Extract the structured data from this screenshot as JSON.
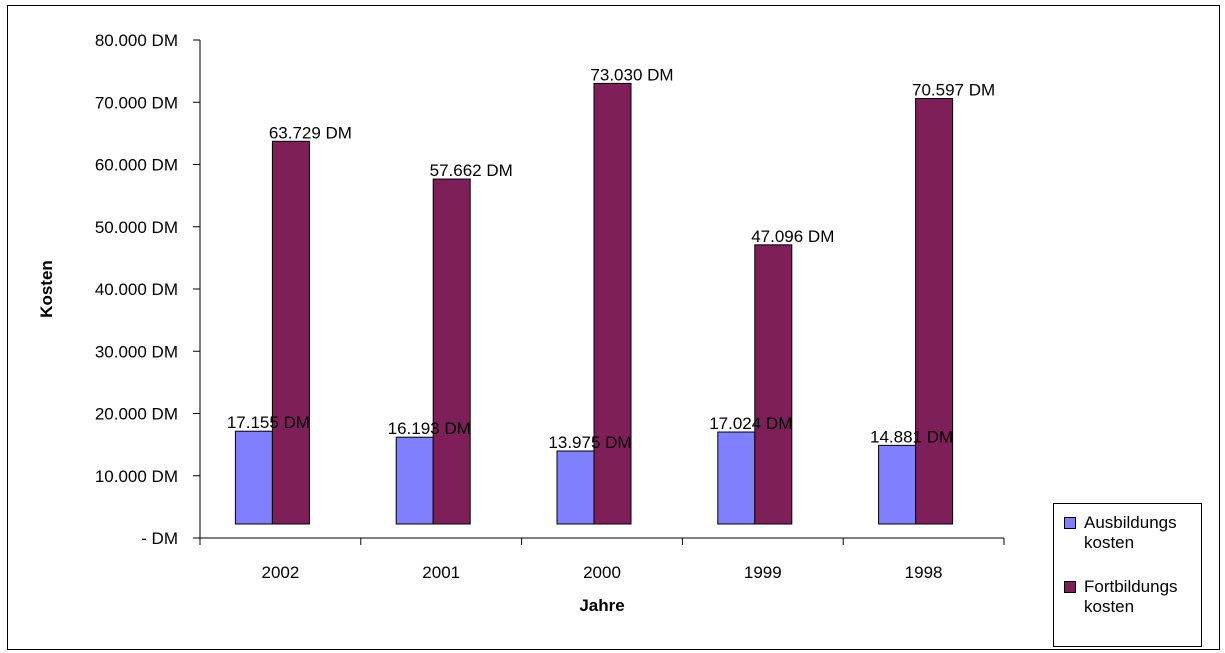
{
  "chart_data": {
    "type": "bar",
    "categories": [
      "2002",
      "2001",
      "2000",
      "1999",
      "1998"
    ],
    "series": [
      {
        "name": "Ausbildungs kosten",
        "color": "#8080ff",
        "values": [
          17155,
          16193,
          13975,
          17024,
          14881
        ],
        "labels": [
          "17.155 DM",
          "16.193 DM",
          "13.975 DM",
          "17.024 DM",
          "14.881 DM"
        ]
      },
      {
        "name": "Fortbildungs kosten",
        "color": "#7f1f5a",
        "values": [
          63729,
          57662,
          73030,
          47096,
          70597
        ],
        "labels": [
          "63.729 DM",
          "57.662 DM",
          "73.030 DM",
          "47.096 DM",
          "70.597 DM"
        ]
      }
    ],
    "yticks": [
      {
        "value": 0,
        "label": "- DM"
      },
      {
        "value": 10000,
        "label": "10.000 DM"
      },
      {
        "value": 20000,
        "label": "20.000 DM"
      },
      {
        "value": 30000,
        "label": "30.000 DM"
      },
      {
        "value": 40000,
        "label": "40.000 DM"
      },
      {
        "value": 50000,
        "label": "50.000 DM"
      },
      {
        "value": 60000,
        "label": "60.000 DM"
      },
      {
        "value": 70000,
        "label": "70.000 DM"
      },
      {
        "value": 80000,
        "label": "80.000 DM"
      }
    ],
    "ylim": [
      0,
      80000
    ],
    "xlabel": "Jahre",
    "ylabel": "Kosten",
    "title": "",
    "grid": false,
    "legend_position": "bottom-right"
  }
}
